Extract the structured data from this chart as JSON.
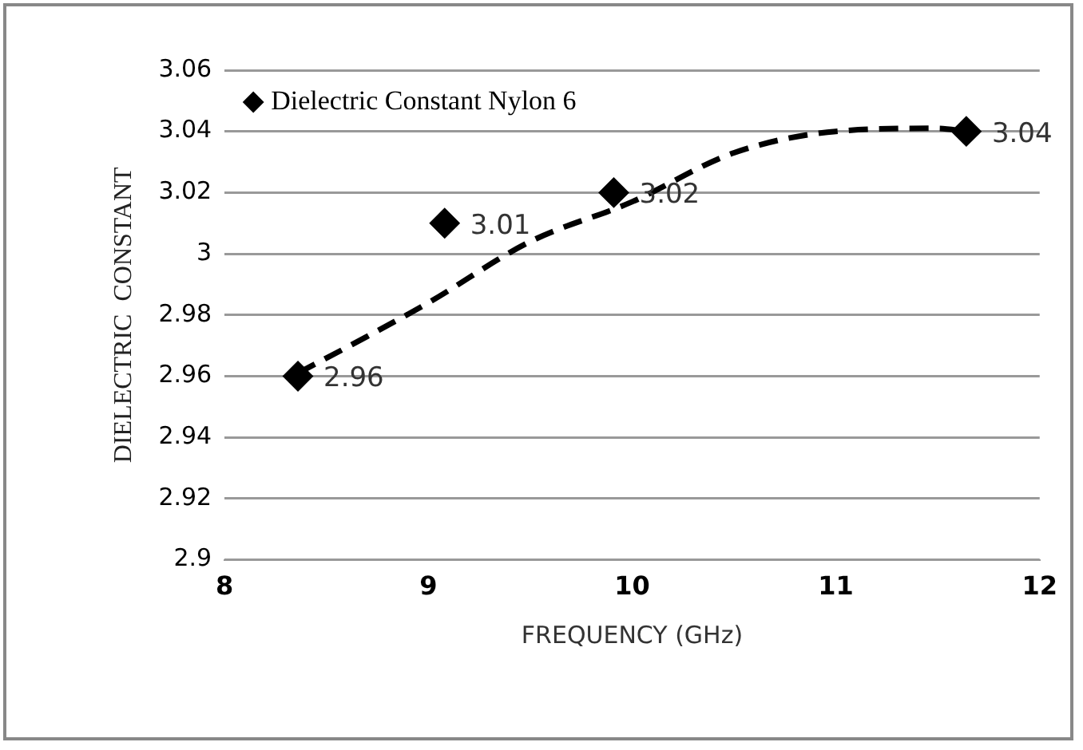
{
  "chart_data": {
    "type": "scatter",
    "xlabel": "FREQUENCY (GHz)",
    "ylabel": "DIELECTRIC  CONSTANT",
    "xlim": [
      8,
      12
    ],
    "xticks": [
      8,
      9,
      10,
      11,
      12
    ],
    "ylim": [
      2.9,
      3.06
    ],
    "yticks": [
      2.9,
      2.92,
      2.94,
      2.96,
      2.98,
      3,
      3.02,
      3.04,
      3.06
    ],
    "grid": "y",
    "legend": "top left",
    "marker": "diamond",
    "series": [
      {
        "name": "Dielectric Constant Nylon 6",
        "color": "#000000",
        "x": [
          8.36,
          9.08,
          9.91,
          11.64
        ],
        "values": [
          2.96,
          3.01,
          3.02,
          3.04
        ],
        "value_labels": [
          "2.96",
          "3.01",
          "3.02",
          "3.04"
        ]
      },
      {
        "type": "line",
        "color": "#000000",
        "line_style": "dashed",
        "marker": "none",
        "x": [
          8.36,
          8.7,
          9,
          9.5,
          10,
          10.5,
          11,
          11.5,
          11.64
        ],
        "values": [
          2.961,
          2.973,
          2.984,
          3.004,
          3.017,
          3.033,
          3.04,
          3.041,
          3.04
        ]
      }
    ]
  }
}
